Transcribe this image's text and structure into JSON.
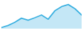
{
  "chart_data": {
    "type": "area",
    "x": [
      0,
      1,
      2,
      3,
      4,
      5,
      6,
      7,
      8,
      9,
      10,
      11,
      12
    ],
    "values": [
      0.5,
      1.5,
      3,
      5,
      4,
      5.2,
      6.5,
      4.5,
      8.5,
      10.5,
      11.5,
      9.5,
      6.5
    ],
    "color": "#3ab0e0",
    "xlim": [
      0,
      12
    ],
    "ylim": [
      0,
      13
    ],
    "tick_labels": false
  }
}
